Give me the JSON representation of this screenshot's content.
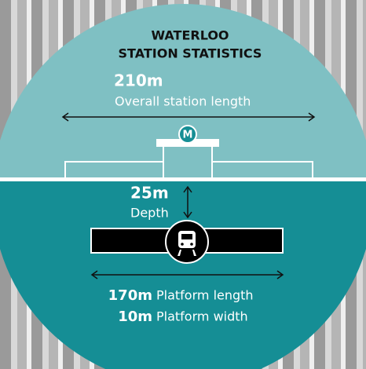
{
  "header": {
    "title_line1": "WATERLOO",
    "title_line2": "STATION STATISTICS"
  },
  "stats": {
    "station_length": {
      "value": "210m",
      "label": "Overall station length"
    },
    "depth": {
      "value": "25m",
      "label": "Depth"
    },
    "platform_length": {
      "value": "170m",
      "label": "Platform length"
    },
    "platform_width": {
      "value": "10m",
      "label": "Platform width"
    }
  },
  "logo": "M"
}
